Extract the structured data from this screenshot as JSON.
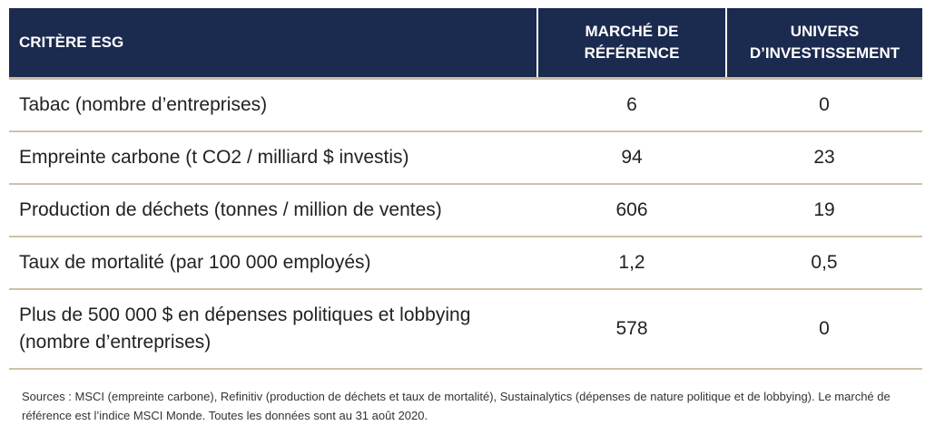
{
  "table": {
    "headers": {
      "criterion": "CRITÈRE ESG",
      "reference": "MARCHÉ DE\nRÉFÉRENCE",
      "universe": "UNIVERS\nD’INVESTISSEMENT"
    },
    "rows": [
      {
        "criterion": "Tabac (nombre d’entreprises)",
        "reference": "6",
        "universe": "0"
      },
      {
        "criterion": "Empreinte carbone (t CO2 / milliard $ investis)",
        "reference": "94",
        "universe": "23"
      },
      {
        "criterion": "Production de déchets (tonnes / million de ventes)",
        "reference": "606",
        "universe": "19"
      },
      {
        "criterion": "Taux de mortalité (par 100 000 employés)",
        "reference": "1,2",
        "universe": "0,5"
      },
      {
        "criterion": "Plus de 500 000 $ en dépenses politiques et lobbying\n(nombre d’entreprises)",
        "reference": "578",
        "universe": "0"
      }
    ]
  },
  "footnote": "Sources : MSCI (empreinte carbone), Refinitiv (production de déchets et taux de mortalité), Sustainalytics (dépenses de nature politique et de lobbying). Le marché de référence est l’indice MSCI Monde. Toutes les données sont au 31 août 2020.",
  "colors": {
    "header_bg": "#1b2a4f",
    "header_text": "#ffffff",
    "rule": "#ccc2a8"
  }
}
